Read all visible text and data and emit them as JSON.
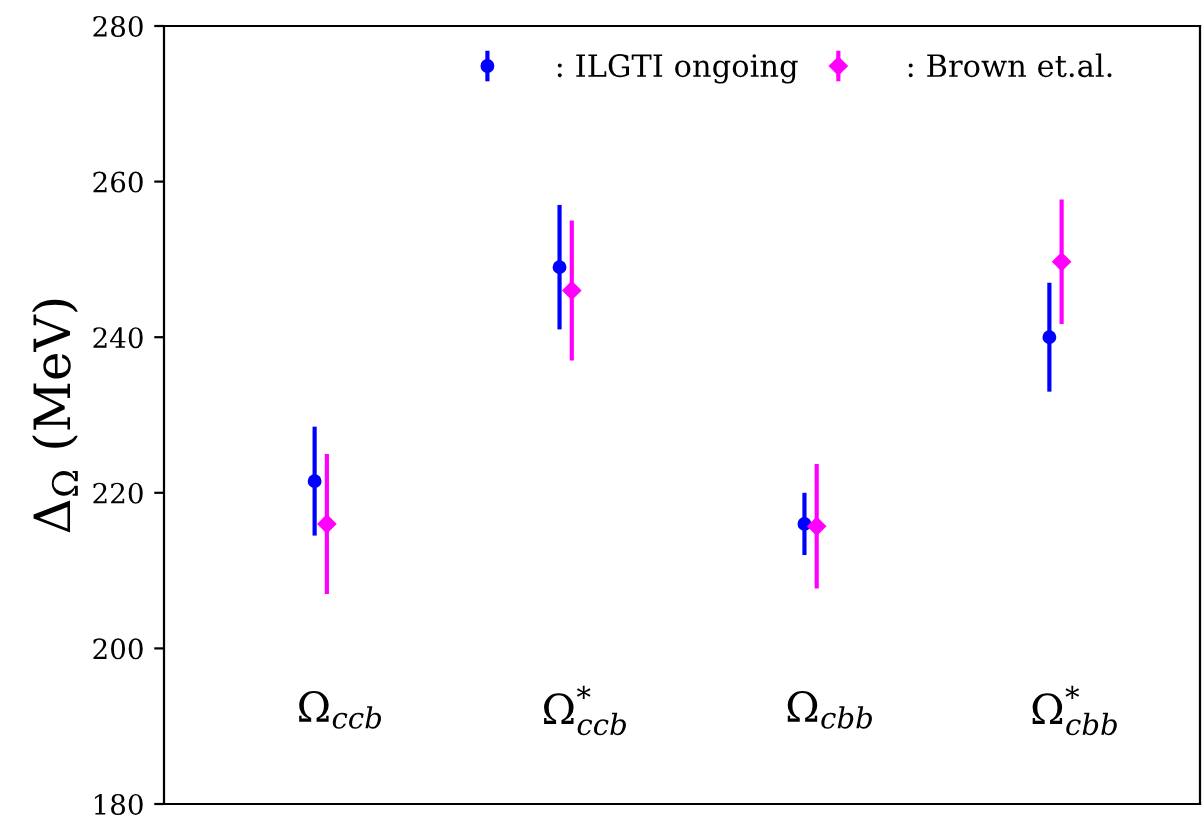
{
  "chart_data": {
    "type": "scatter",
    "ylabel": "Δ$_{Ω}$ (MeV)",
    "categories": [
      "Ω$_{ccb}$",
      "Ω$^{*}$$_{ccb}$",
      "Ω$_{cbb}$",
      "Ω$^{*}$$_{cbb}$"
    ],
    "series": [
      {
        "name": ": ILGTI ongoing",
        "color": "#0000ff",
        "marker": "circle",
        "values": [
          221.5,
          249,
          216,
          240
        ],
        "errors": [
          7,
          8,
          4,
          7
        ]
      },
      {
        "name": ": Brown et.al.",
        "color": "#ff00ff",
        "marker": "diamond",
        "values": [
          216,
          246,
          215.7,
          249.7
        ],
        "errors": [
          9,
          9,
          8,
          8
        ]
      }
    ],
    "ylim": [
      180,
      280
    ],
    "yticks": [
      180,
      200,
      220,
      240,
      260,
      280
    ],
    "grid": false,
    "legend": "top"
  }
}
